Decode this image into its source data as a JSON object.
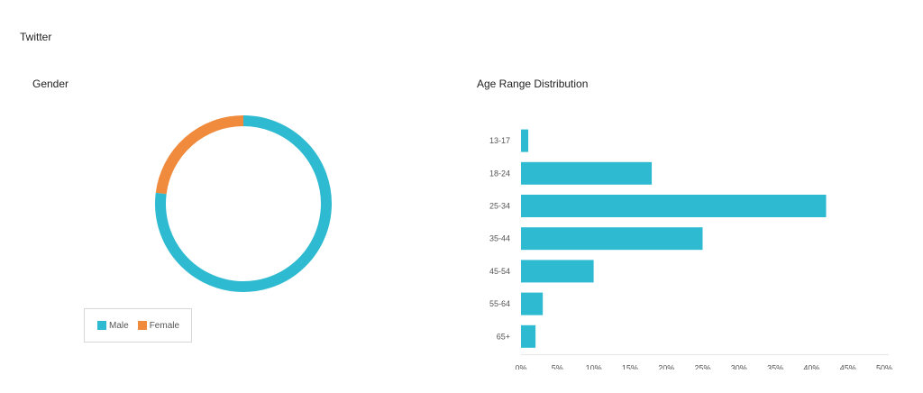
{
  "page": {
    "section_title": "Twitter"
  },
  "colors": {
    "male": "#2ebad0",
    "female": "#f08a3c"
  },
  "chart_data": [
    {
      "type": "pie",
      "variant": "donut",
      "title": "Gender",
      "categories": [
        "Male",
        "Female"
      ],
      "values": [
        77,
        23
      ],
      "legend_position": "bottom-left"
    },
    {
      "type": "bar",
      "orientation": "horizontal",
      "title": "Age Range Distribution",
      "categories": [
        "13-17",
        "18-24",
        "25-34",
        "35-44",
        "45-54",
        "55-64",
        "65+"
      ],
      "values": [
        1,
        18,
        42,
        25,
        10,
        3,
        2
      ],
      "xlim": [
        0,
        50
      ],
      "xticks": [
        "0%",
        "5%",
        "10%",
        "15%",
        "20%",
        "25%",
        "30%",
        "35%",
        "40%",
        "45%",
        "50%"
      ],
      "grid": false
    }
  ]
}
